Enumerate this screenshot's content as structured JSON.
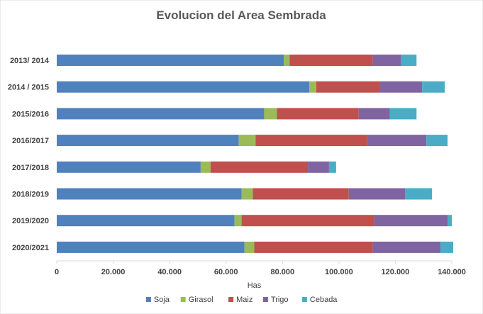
{
  "chart_data": {
    "type": "bar",
    "orientation": "horizontal",
    "stacked": true,
    "title": "Evolucion del Area Sembrada",
    "xlabel": "Has",
    "ylabel": "",
    "xlim": [
      0,
      140000
    ],
    "x_ticks": [
      0,
      20000,
      40000,
      60000,
      80000,
      100000,
      120000,
      140000
    ],
    "x_tick_labels": [
      "0",
      "20.000",
      "40.000",
      "60.000",
      "80.000",
      "100.000",
      "120.000",
      "140.000"
    ],
    "categories": [
      "2013/ 2014",
      "2014 / 2015",
      "2015/2016",
      "2016/2017",
      "2017/2018",
      "2018/2019",
      "2019/2020",
      "2020/2021"
    ],
    "series": [
      {
        "name": "Soja",
        "color": "#4F81BD",
        "values": [
          80500,
          89500,
          73500,
          64500,
          51000,
          65500,
          63000,
          66500
        ]
      },
      {
        "name": "Girasol",
        "color": "#9BBB59",
        "values": [
          2000,
          2500,
          4500,
          6000,
          3500,
          4000,
          2500,
          3500
        ]
      },
      {
        "name": "Maiz",
        "color": "#C0504D",
        "values": [
          29500,
          22500,
          29000,
          39500,
          34500,
          34000,
          47000,
          42000
        ]
      },
      {
        "name": "Trigo",
        "color": "#8064A2",
        "values": [
          10000,
          15000,
          11000,
          21000,
          7500,
          20000,
          26000,
          24000
        ]
      },
      {
        "name": "Cebada",
        "color": "#4BACC6",
        "values": [
          5500,
          8000,
          9500,
          7500,
          2500,
          9500,
          1500,
          4500
        ]
      }
    ],
    "grid": false,
    "legend_position": "bottom"
  }
}
